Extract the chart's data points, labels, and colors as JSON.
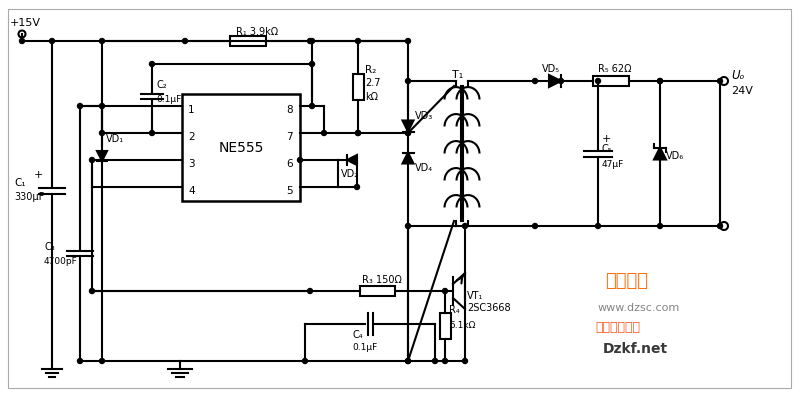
{
  "bg_color": "#ffffff",
  "line_color": "#000000",
  "line_width": 1.5,
  "watermark_text1": "维库一下",
  "watermark_text2": "www.dzsc.com",
  "watermark_text3": "电子开发社区",
  "watermark_text4": "Dzkf.net",
  "labels": {
    "vplus": "+15V",
    "c1": "C₁",
    "c1v": "330μF",
    "vd1": "VD₁",
    "c2": "C₂",
    "c2v": "0.1μF",
    "r1": "R₁ 3.9kΩ",
    "ne555": "NE555",
    "r2": "R₂",
    "r2v": "2.7",
    "r2u": "kΩ",
    "vd2": "VD₂",
    "vd3": "VD₃",
    "vd4": "VD₄",
    "c3": "C₃",
    "c3v": "4700pF",
    "r3": "R₃ 150Ω",
    "r4": "R₄",
    "r4v": "5.1kΩ",
    "c4": "C₄",
    "c4v": "0.1μF",
    "vt1": "VT₁",
    "vt1v": "2SC3668",
    "t1": "T₁",
    "vd5": "VD₅",
    "r5": "R₅ 62Ω",
    "uo": "Uₒ",
    "uov": "24V",
    "c5": "C₅",
    "c5v": "47μF",
    "vd6": "VD₆",
    "pin1": "1",
    "pin2": "2",
    "pin3": "3",
    "pin4": "4",
    "pin5": "5",
    "pin6": "6",
    "pin7": "7",
    "pin8": "8"
  }
}
